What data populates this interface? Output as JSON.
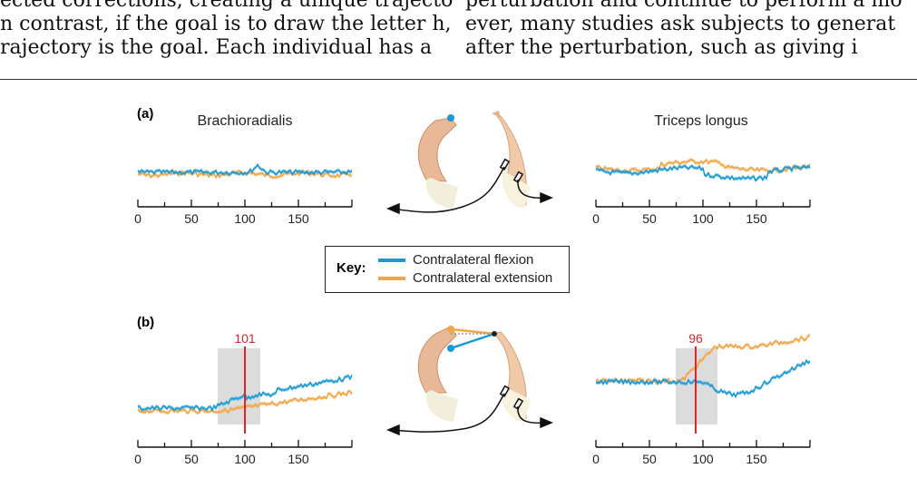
{
  "body_text": {
    "left_lines": [
      "ected corrections, creating a unique trajectory on",
      "n contrast, if the goal is to draw the letter h,",
      "rajectory is the goal. Each individual has a"
    ],
    "right_lines": [
      "perturbation and continue to perform a mo",
      "ever, many studies ask subjects to generat",
      "after the perturbation, such as giving i"
    ]
  },
  "figure": {
    "panel_a": {
      "label": "(a)",
      "left_muscle": "Brachioradialis",
      "right_muscle": "Triceps longus",
      "ticks": [
        "0",
        "50",
        "100",
        "150"
      ]
    },
    "panel_b": {
      "label": "(b)",
      "left_marker": "101",
      "right_marker": "96",
      "ticks": [
        "0",
        "50",
        "100",
        "150"
      ]
    },
    "key": {
      "label": "Key:",
      "items": [
        {
          "text": "Contralateral flexion",
          "color": "#1a9ad6"
        },
        {
          "text": "Contralateral extension",
          "color": "#f5a443"
        }
      ]
    },
    "colors": {
      "flexion": "#1a9ad6",
      "extension": "#f5a443",
      "marker": "#e0252a",
      "shade": "#dcdcdc"
    }
  }
}
